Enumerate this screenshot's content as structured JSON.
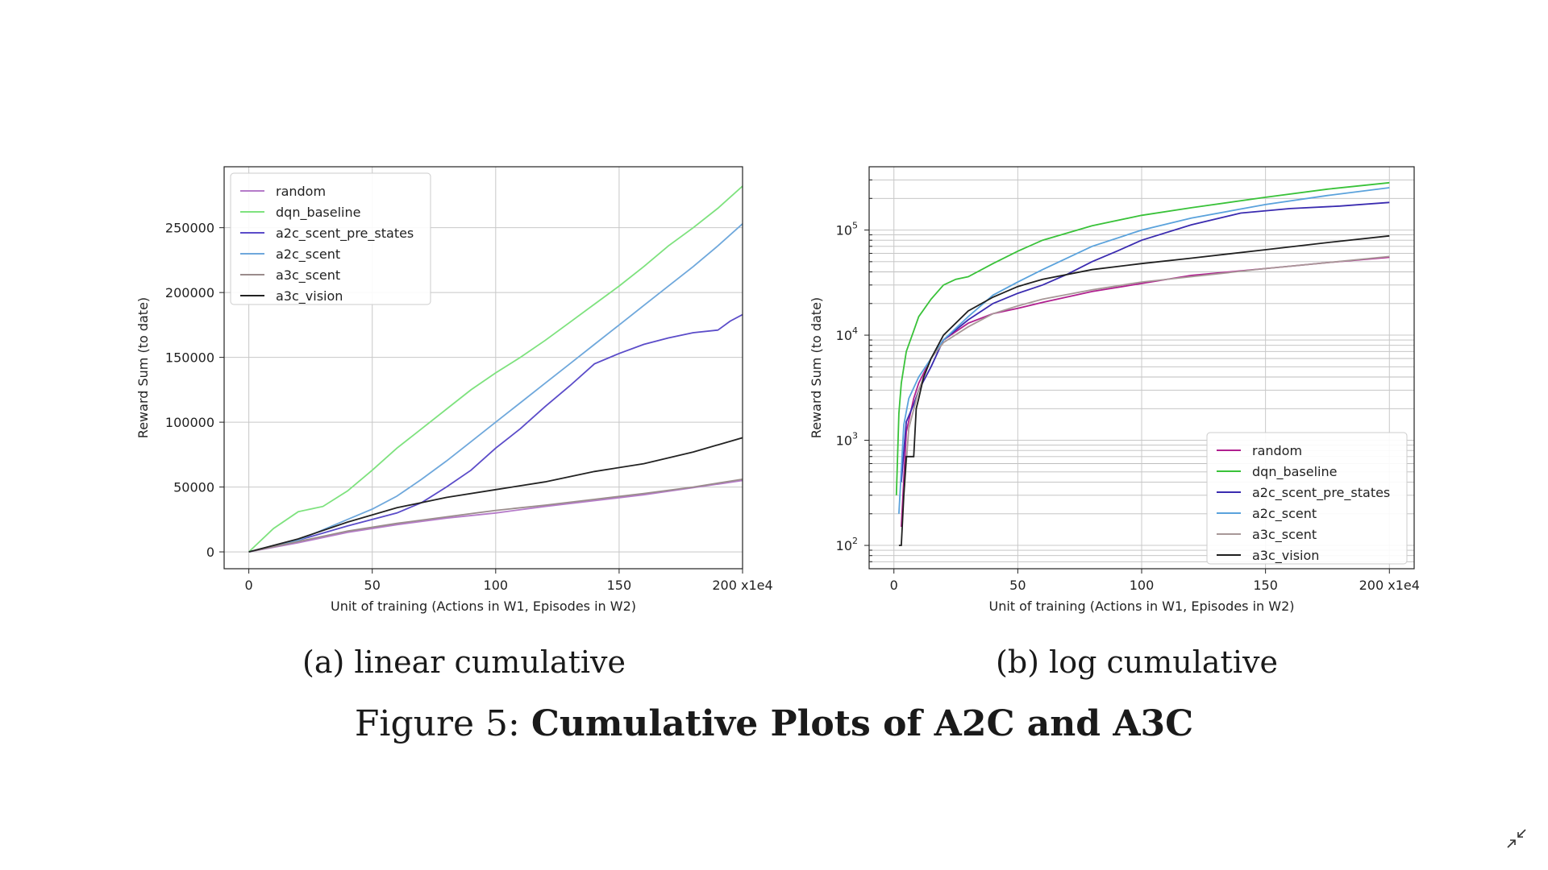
{
  "captions": {
    "a": "(a) linear cumulative",
    "b": "(b) log cumulative",
    "figure_prefix": "Figure 5:",
    "figure_title": "Cumulative Plots of A2C and A3C"
  },
  "icons": {
    "collapse": "collapse-arrows-icon"
  },
  "chart_data": [
    {
      "type": "line",
      "scale": "linear",
      "xlabel": "Unit of training (Actions in W1, Episodes in W2)",
      "ylabel": "Reward Sum (to date)",
      "x_ticks": [
        0,
        50,
        100,
        150,
        200
      ],
      "x_tick_labels": [
        "0",
        "50",
        "100",
        "150",
        "200 x1e4"
      ],
      "y_ticks": [
        0,
        50000,
        100000,
        150000,
        200000,
        250000
      ],
      "y_tick_labels": [
        "0",
        "50000",
        "100000",
        "150000",
        "200000",
        "250000"
      ],
      "xlim": [
        -10,
        200
      ],
      "ylim": [
        -13000,
        297000
      ],
      "grid": true,
      "legend_position": "top-left",
      "series": [
        {
          "name": "random",
          "color": "#b57bc9",
          "x": [
            0,
            20,
            40,
            60,
            80,
            100,
            120,
            140,
            160,
            180,
            200
          ],
          "values": [
            0,
            7000,
            15000,
            21000,
            26000,
            30000,
            35000,
            39500,
            44000,
            49500,
            55000
          ]
        },
        {
          "name": "dqn_baseline",
          "color": "#7ee27e",
          "x": [
            0,
            10,
            20,
            30,
            40,
            50,
            60,
            70,
            80,
            90,
            100,
            110,
            120,
            130,
            140,
            150,
            160,
            170,
            180,
            190,
            200
          ],
          "values": [
            0,
            18000,
            31000,
            35000,
            47000,
            63000,
            80000,
            95000,
            110000,
            125000,
            138000,
            150000,
            163000,
            177000,
            191000,
            205000,
            220000,
            236000,
            250000,
            265000,
            282000
          ]
        },
        {
          "name": "a2c_scent_pre_states",
          "color": "#5b4cc9",
          "x": [
            0,
            20,
            40,
            60,
            70,
            80,
            90,
            100,
            110,
            120,
            130,
            140,
            150,
            160,
            170,
            180,
            190,
            195,
            200
          ],
          "values": [
            0,
            9000,
            20000,
            30000,
            38000,
            50000,
            63000,
            80000,
            95000,
            112000,
            128000,
            145000,
            153000,
            160000,
            165000,
            169000,
            171000,
            178000,
            183000
          ]
        },
        {
          "name": "a2c_scent",
          "color": "#6fa8dc",
          "x": [
            0,
            20,
            40,
            50,
            60,
            70,
            80,
            90,
            100,
            110,
            120,
            130,
            140,
            150,
            160,
            170,
            180,
            190,
            200
          ],
          "values": [
            0,
            9000,
            25000,
            33000,
            43000,
            56000,
            70000,
            85000,
            100000,
            115000,
            130000,
            145000,
            160000,
            175000,
            190000,
            205000,
            220000,
            236000,
            253000
          ]
        },
        {
          "name": "a3c_scent",
          "color": "#9a8c8c",
          "x": [
            0,
            20,
            40,
            60,
            80,
            100,
            120,
            140,
            160,
            180,
            200
          ],
          "values": [
            0,
            8000,
            16000,
            22000,
            27000,
            32000,
            36000,
            40500,
            45000,
            50000,
            56000
          ]
        },
        {
          "name": "a3c_vision",
          "color": "#222222",
          "x": [
            0,
            20,
            40,
            60,
            80,
            100,
            120,
            140,
            160,
            180,
            200
          ],
          "values": [
            0,
            10000,
            23000,
            34000,
            42000,
            48000,
            54000,
            62000,
            68000,
            77000,
            88000
          ]
        }
      ]
    },
    {
      "type": "line",
      "scale": "log",
      "xlabel": "Unit of training (Actions in W1, Episodes in W2)",
      "ylabel": "Reward Sum (to date)",
      "x_ticks": [
        0,
        50,
        100,
        150,
        200
      ],
      "x_tick_labels": [
        "0",
        "50",
        "100",
        "150",
        "200 x1e4"
      ],
      "y_ticks": [
        100,
        1000,
        10000,
        100000
      ],
      "y_tick_labels_base": [
        "10",
        "10",
        "10",
        "10"
      ],
      "y_tick_labels_exp": [
        "2",
        "3",
        "4",
        "5"
      ],
      "xlim": [
        -10,
        210
      ],
      "ylim": [
        60,
        400000
      ],
      "grid": true,
      "legend_position": "bottom-right",
      "series": [
        {
          "name": "random",
          "color": "#b0208f",
          "x": [
            3,
            5,
            8,
            10,
            15,
            20,
            30,
            40,
            50,
            60,
            80,
            100,
            120,
            150,
            175,
            200
          ],
          "values": [
            150,
            1200,
            2500,
            3500,
            6000,
            9000,
            13000,
            16000,
            18000,
            20500,
            26000,
            31000,
            37000,
            43000,
            49000,
            55000
          ]
        },
        {
          "name": "dqn_baseline",
          "color": "#39c239",
          "x": [
            1,
            2,
            3,
            5,
            8,
            10,
            15,
            20,
            25,
            30,
            40,
            50,
            60,
            80,
            100,
            120,
            150,
            175,
            200
          ],
          "values": [
            300,
            1800,
            3500,
            7000,
            11000,
            15000,
            22000,
            30000,
            34000,
            36000,
            48000,
            63000,
            80000,
            110000,
            138000,
            163000,
            205000,
            245000,
            282000
          ]
        },
        {
          "name": "a2c_scent_pre_states",
          "color": "#3a2bb0",
          "x": [
            3,
            5,
            8,
            10,
            15,
            20,
            30,
            40,
            50,
            60,
            70,
            80,
            90,
            100,
            120,
            140,
            160,
            180,
            200
          ],
          "values": [
            400,
            1500,
            2200,
            3000,
            5000,
            9000,
            14000,
            20000,
            25000,
            30000,
            38000,
            50000,
            63000,
            80000,
            112000,
            145000,
            160000,
            169000,
            183000
          ]
        },
        {
          "name": "a2c_scent",
          "color": "#5aa2dc",
          "x": [
            2,
            4,
            6,
            10,
            15,
            20,
            30,
            40,
            50,
            60,
            80,
            100,
            120,
            150,
            175,
            200
          ],
          "values": [
            200,
            1400,
            2500,
            4000,
            6000,
            9000,
            15000,
            24000,
            32000,
            42000,
            70000,
            100000,
            130000,
            175000,
            213000,
            253000
          ]
        },
        {
          "name": "a3c_scent",
          "color": "#a89898",
          "x": [
            4,
            6,
            10,
            15,
            20,
            30,
            40,
            50,
            60,
            80,
            100,
            120,
            150,
            175,
            200
          ],
          "values": [
            300,
            1300,
            3000,
            6000,
            8500,
            12000,
            16000,
            19000,
            22000,
            27000,
            32000,
            36000,
            43000,
            49000,
            56000
          ]
        },
        {
          "name": "a3c_vision",
          "color": "#1f1f1f",
          "x": [
            2,
            3,
            4,
            5,
            6,
            7,
            8,
            9,
            10,
            12,
            15,
            20,
            30,
            40,
            50,
            60,
            80,
            100,
            120,
            150,
            175,
            200
          ],
          "values": [
            100,
            100,
            300,
            700,
            700,
            700,
            700,
            2000,
            2500,
            4000,
            6000,
            10000,
            17000,
            23000,
            29000,
            34000,
            42000,
            48000,
            54000,
            65000,
            76000,
            88000
          ]
        }
      ]
    }
  ]
}
